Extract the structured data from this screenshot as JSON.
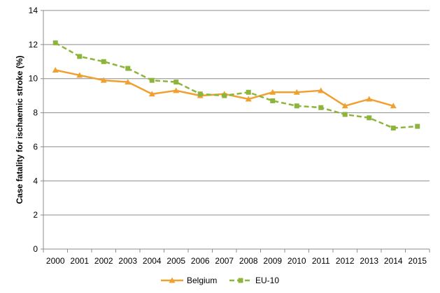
{
  "chart_data": {
    "type": "line",
    "title": "",
    "xlabel": "",
    "ylabel": "Case fatality for ischaemic stroke  (%)",
    "x": [
      "2000",
      "2001",
      "2002",
      "2003",
      "2004",
      "2005",
      "2006",
      "2007",
      "2008",
      "2009",
      "2010",
      "2011",
      "2012",
      "2013",
      "2014",
      "2015"
    ],
    "ylim": [
      0,
      14
    ],
    "yticks": [
      "0",
      "2",
      "4",
      "6",
      "8",
      "10",
      "12",
      "14"
    ],
    "grid": true,
    "legend_position": "bottom",
    "series": [
      {
        "name": "Belgium",
        "color": "#F0A030",
        "style": "solid",
        "marker": "triangle",
        "values": [
          10.5,
          10.2,
          9.9,
          9.8,
          9.1,
          9.3,
          9.0,
          9.1,
          8.8,
          9.2,
          9.2,
          9.3,
          8.4,
          8.8,
          8.4,
          null
        ]
      },
      {
        "name": "EU-10",
        "color": "#8DB53C",
        "style": "dashed",
        "marker": "square",
        "values": [
          12.1,
          11.3,
          11.0,
          10.6,
          9.9,
          9.8,
          9.1,
          9.0,
          9.2,
          8.7,
          8.4,
          8.3,
          7.9,
          7.7,
          7.1,
          7.2
        ]
      }
    ]
  }
}
